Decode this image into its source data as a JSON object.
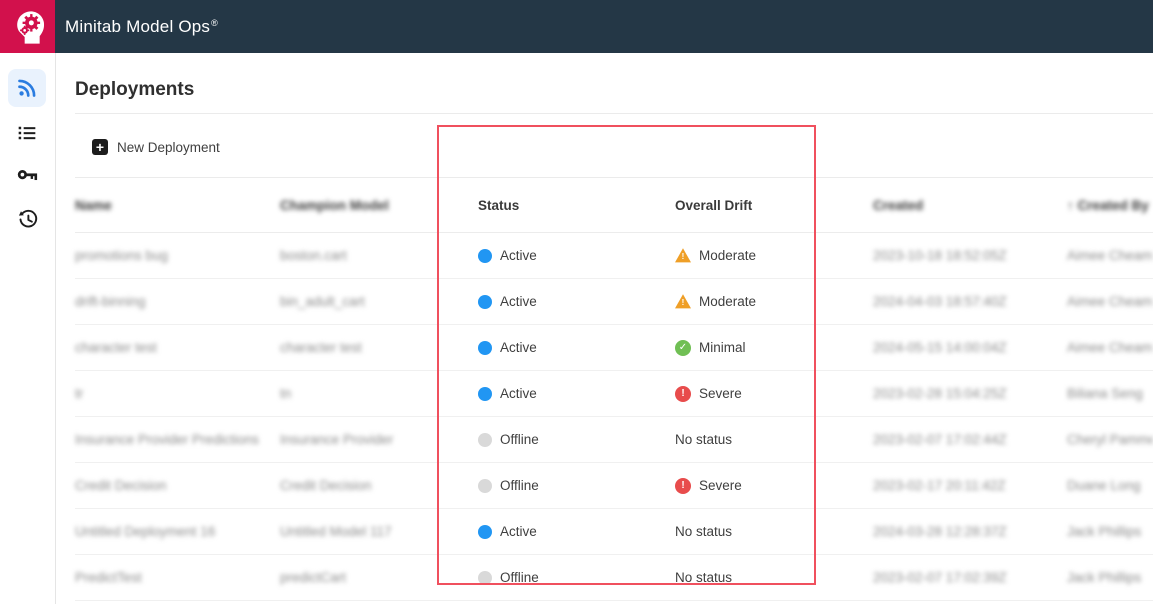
{
  "app": {
    "title": "Minitab Model Ops",
    "registered_mark": "®",
    "header_bg": "#243746",
    "brand_color": "#D2114C"
  },
  "sidebar": {
    "items": [
      {
        "id": "deployments",
        "icon": "rss-feed-icon",
        "active": true
      },
      {
        "id": "model-list",
        "icon": "list-icon",
        "active": false
      },
      {
        "id": "api-keys",
        "icon": "key-icon",
        "active": false
      },
      {
        "id": "history",
        "icon": "history-icon",
        "active": false
      }
    ]
  },
  "page": {
    "title": "Deployments",
    "new_deployment_label": "New Deployment",
    "plus_glyph": "+"
  },
  "table": {
    "columns": [
      {
        "label": "Name",
        "blurred": true
      },
      {
        "label": "Champion Model",
        "blurred": true
      },
      {
        "label": "Status",
        "blurred": false
      },
      {
        "label": "Overall Drift",
        "blurred": false
      },
      {
        "label": "Created",
        "blurred": true
      },
      {
        "label": "↑  Created By",
        "blurred": true
      }
    ],
    "rows": [
      {
        "name": "promotions bug",
        "champion_model": "boston.cart",
        "status": "Active",
        "drift": "Moderate",
        "created": "2023-10-18 18:52:05Z",
        "created_by": "Aimee Cheam"
      },
      {
        "name": "drift-binning",
        "champion_model": "bin_adult_cart",
        "status": "Active",
        "drift": "Moderate",
        "created": "2024-04-03 18:57:40Z",
        "created_by": "Aimee Cheam"
      },
      {
        "name": "character test",
        "champion_model": "character test",
        "status": "Active",
        "drift": "Minimal",
        "created": "2024-05-15 14:00:04Z",
        "created_by": "Aimee Cheam"
      },
      {
        "name": "tr",
        "champion_model": "tn",
        "status": "Active",
        "drift": "Severe",
        "created": "2023-02-28 15:04:25Z",
        "created_by": "Biliana Seng"
      },
      {
        "name": "Insurance Provider Predictions",
        "champion_model": "Insurance Provider",
        "status": "Offline",
        "drift": "No status",
        "created": "2023-02-07 17:02:44Z",
        "created_by": "Cheryl Pammer"
      },
      {
        "name": "Credit Decision",
        "champion_model": "Credit Decision",
        "status": "Offline",
        "drift": "Severe",
        "created": "2023-02-17 20:11:42Z",
        "created_by": "Duane Long"
      },
      {
        "name": "Untitled Deployment 16",
        "champion_model": "Untitled Model 117",
        "status": "Active",
        "drift": "No status",
        "created": "2024-03-28 12:28:37Z",
        "created_by": "Jack Phillips"
      },
      {
        "name": "PredictTest",
        "champion_model": "predictCart",
        "status": "Offline",
        "drift": "No status",
        "created": "2023-02-07 17:02:39Z",
        "created_by": "Jack Phillips"
      }
    ]
  },
  "legend": {
    "status_colors": {
      "Active": "#2196F3",
      "Offline": "#D9D9D9"
    },
    "drift_styles": {
      "Moderate": {
        "shape": "triangle",
        "color": "#EF9F27",
        "glyph": "!"
      },
      "Minimal": {
        "shape": "circle",
        "color": "#70BF54",
        "glyph": "✓"
      },
      "Severe": {
        "shape": "circle",
        "color": "#E84C4C",
        "glyph": "!"
      }
    }
  },
  "annotation": {
    "type": "highlight-rectangle",
    "color": "#F0505E",
    "covers": [
      "Status",
      "Overall Drift"
    ]
  }
}
